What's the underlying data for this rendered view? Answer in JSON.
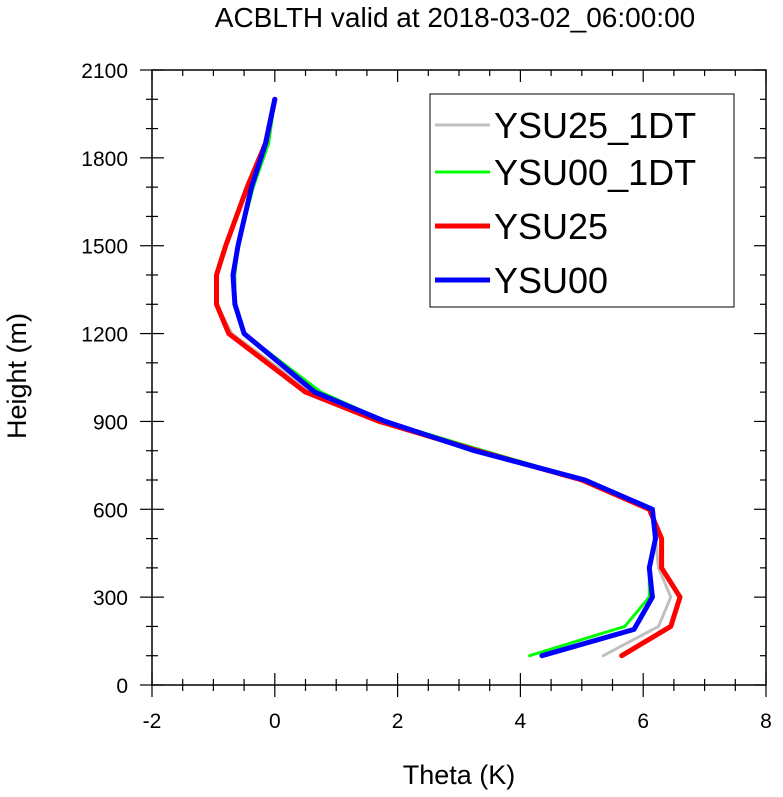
{
  "chart_data": {
    "type": "line",
    "title": "ACBLTH valid at 2018-03-02_06:00:00",
    "xlabel": "Theta (K)",
    "ylabel": "Height (m)",
    "xlim": [
      -2,
      8
    ],
    "ylim": [
      0,
      2100
    ],
    "xticks": [
      "-2",
      "0",
      "2",
      "4",
      "6",
      "8"
    ],
    "yticks": [
      "0",
      "300",
      "600",
      "900",
      "1200",
      "1500",
      "1800",
      "2100"
    ],
    "legend_position": "top-right",
    "series": [
      {
        "name": "YSU25_1DT",
        "color": "#c0c0c0",
        "x": [
          5.35,
          6.25,
          6.45,
          6.25,
          6.2,
          6.15,
          5.0,
          3.3,
          1.8,
          0.6,
          -0.7,
          -0.95,
          -0.95,
          -0.8,
          -0.45,
          -0.15,
          0.0
        ],
        "y": [
          100,
          200,
          300,
          400,
          500,
          600,
          700,
          800,
          900,
          1000,
          1200,
          1300,
          1400,
          1500,
          1700,
          1850,
          2000
        ],
        "width": 3
      },
      {
        "name": "YSU00_1DT",
        "color": "#00ff00",
        "x": [
          4.15,
          5.7,
          6.1,
          6.1,
          6.2,
          6.15,
          5.05,
          3.4,
          1.8,
          0.75,
          -0.5,
          -0.65,
          -0.65,
          -0.6,
          -0.35,
          -0.1,
          0.0
        ],
        "y": [
          100,
          200,
          300,
          400,
          500,
          600,
          700,
          800,
          900,
          1000,
          1200,
          1300,
          1400,
          1500,
          1700,
          1850,
          2000
        ],
        "width": 3
      },
      {
        "name": "YSU25",
        "color": "#ff0000",
        "x": [
          5.65,
          6.45,
          6.6,
          6.3,
          6.3,
          6.1,
          5.0,
          3.3,
          1.7,
          0.5,
          -0.75,
          -0.95,
          -0.95,
          -0.8,
          -0.45,
          -0.15,
          0.0
        ],
        "y": [
          100,
          200,
          300,
          400,
          500,
          600,
          700,
          800,
          900,
          1000,
          1200,
          1300,
          1400,
          1500,
          1700,
          1850,
          2000
        ],
        "width": 5
      },
      {
        "name": "YSU00",
        "color": "#0000ff",
        "x": [
          4.35,
          5.85,
          6.15,
          6.1,
          6.2,
          6.15,
          5.05,
          3.25,
          1.8,
          0.65,
          -0.5,
          -0.65,
          -0.68,
          -0.6,
          -0.38,
          -0.15,
          0.0
        ],
        "y": [
          100,
          190,
          300,
          400,
          500,
          600,
          700,
          800,
          900,
          1000,
          1200,
          1300,
          1400,
          1500,
          1700,
          1850,
          2000
        ],
        "width": 5
      }
    ]
  }
}
